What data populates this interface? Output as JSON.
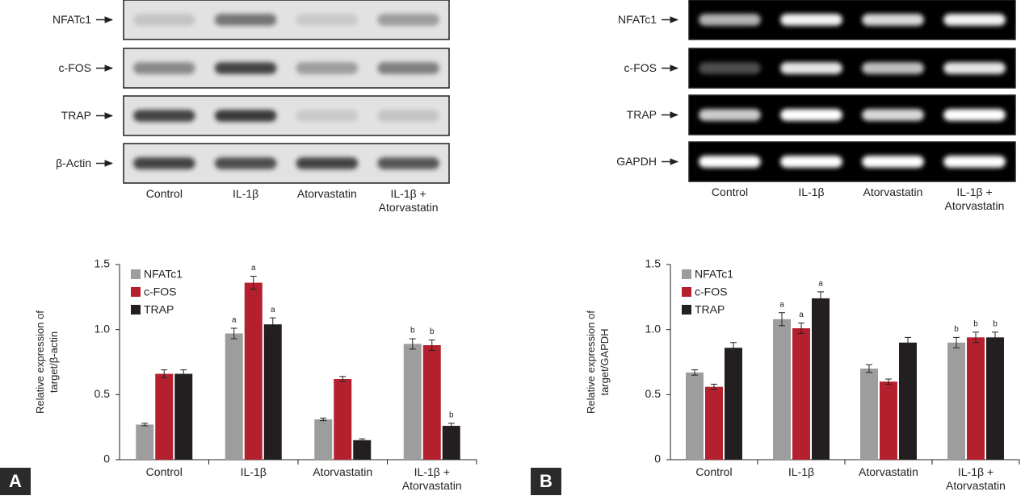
{
  "chart_data": [
    {
      "type": "bar",
      "ylabel": "Relative expression of target/β-actin",
      "categories": [
        "Control",
        "IL-1β",
        "Atorvastatin",
        "IL-1β + Atorvastatin"
      ],
      "series": [
        {
          "name": "NFATc1",
          "color": "#9d9d9d",
          "values": [
            0.27,
            0.97,
            0.31,
            0.89
          ],
          "errors": [
            0.01,
            0.04,
            0.01,
            0.04
          ],
          "letters": [
            null,
            "a",
            null,
            "b"
          ]
        },
        {
          "name": "c-FOS",
          "color": "#b5202e",
          "values": [
            0.66,
            1.36,
            0.62,
            0.88
          ],
          "errors": [
            0.03,
            0.05,
            0.02,
            0.04
          ],
          "letters": [
            null,
            "a",
            null,
            "b"
          ]
        },
        {
          "name": "TRAP",
          "color": "#231f20",
          "values": [
            0.66,
            1.04,
            0.15,
            0.26
          ],
          "errors": [
            0.03,
            0.05,
            0.01,
            0.02
          ],
          "letters": [
            null,
            "a",
            null,
            "b"
          ]
        }
      ],
      "ylim": [
        0,
        1.5
      ],
      "yticks": [
        0,
        0.5,
        {
          "value": 1,
          "label": "1.0"
        },
        1.5
      ]
    },
    {
      "type": "bar",
      "ylabel": "Relative expression of target/GAPDH",
      "categories": [
        "Control",
        "IL-1β",
        "Atorvastatin",
        "IL-1β + Atorvastatin"
      ],
      "series": [
        {
          "name": "NFATc1",
          "color": "#9d9d9d",
          "values": [
            0.67,
            1.08,
            0.7,
            0.9
          ],
          "errors": [
            0.02,
            0.05,
            0.03,
            0.04
          ],
          "letters": [
            null,
            "a",
            null,
            "b"
          ]
        },
        {
          "name": "c-FOS",
          "color": "#b5202e",
          "values": [
            0.56,
            1.01,
            0.6,
            0.94
          ],
          "errors": [
            0.02,
            0.04,
            0.02,
            0.04
          ],
          "letters": [
            null,
            "a",
            null,
            "b"
          ]
        },
        {
          "name": "TRAP",
          "color": "#231f20",
          "values": [
            0.86,
            1.24,
            0.9,
            0.94
          ],
          "errors": [
            0.04,
            0.05,
            0.04,
            0.04
          ],
          "letters": [
            null,
            "a",
            null,
            "b"
          ]
        }
      ],
      "ylim": [
        0,
        1.5
      ],
      "yticks": [
        0,
        0.5,
        {
          "value": 1,
          "label": "1.0"
        },
        1.5
      ]
    }
  ],
  "panels": [
    {
      "label": "A",
      "blot_rows": [
        "NFATc1",
        "c-FOS",
        "TRAP",
        "β-Actin"
      ],
      "blot_lanes": [
        "Control",
        "IL-1β",
        "Atorvastatin",
        "IL-1β + Atorvastatin"
      ]
    },
    {
      "label": "B",
      "blot_rows": [
        "NFATc1",
        "c-FOS",
        "TRAP",
        "GAPDH"
      ],
      "blot_lanes": [
        "Control",
        "IL-1β",
        "Atorvastatin",
        "IL-1β + Atorvastatin"
      ]
    }
  ]
}
